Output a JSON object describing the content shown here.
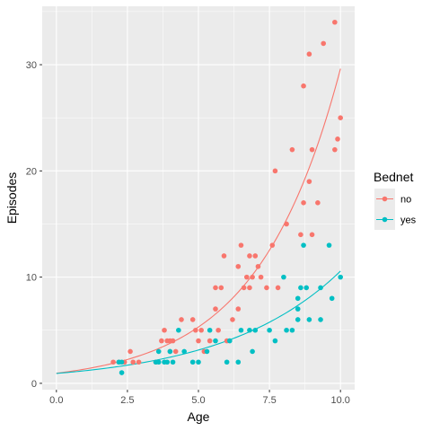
{
  "chart_data": {
    "type": "scatter",
    "xlabel": "Age",
    "ylabel": "Episodes",
    "xlim": [
      -0.5,
      10.5
    ],
    "ylim": [
      -0.6,
      35.5
    ],
    "x_ticks": [
      0,
      2.5,
      5,
      7.5,
      10
    ],
    "x_tick_labels": [
      "0.0",
      "2.5",
      "5.0",
      "7.5",
      "10.0"
    ],
    "y_ticks": [
      0,
      10,
      20,
      30
    ],
    "y_tick_labels": [
      "0",
      "10",
      "20",
      "30"
    ],
    "grid": true,
    "legend": {
      "title": "Bednet",
      "position": "right"
    },
    "series": [
      {
        "name": "no",
        "color": "#F8766D",
        "points": [
          [
            2.0,
            2
          ],
          [
            2.2,
            2
          ],
          [
            2.4,
            2
          ],
          [
            2.6,
            3
          ],
          [
            2.7,
            2
          ],
          [
            2.9,
            2
          ],
          [
            3.5,
            2
          ],
          [
            3.7,
            4
          ],
          [
            3.8,
            5
          ],
          [
            3.9,
            4
          ],
          [
            4.0,
            3
          ],
          [
            4.0,
            4
          ],
          [
            4.1,
            4
          ],
          [
            4.2,
            3
          ],
          [
            4.4,
            6
          ],
          [
            4.8,
            6
          ],
          [
            4.9,
            5
          ],
          [
            5.0,
            4
          ],
          [
            5.1,
            5
          ],
          [
            5.2,
            3
          ],
          [
            5.4,
            4
          ],
          [
            5.6,
            7
          ],
          [
            5.6,
            9
          ],
          [
            5.7,
            5
          ],
          [
            5.8,
            9
          ],
          [
            5.9,
            12
          ],
          [
            6.0,
            4
          ],
          [
            6.2,
            6
          ],
          [
            6.4,
            7
          ],
          [
            6.4,
            11
          ],
          [
            6.5,
            13
          ],
          [
            6.6,
            9
          ],
          [
            6.7,
            10
          ],
          [
            6.8,
            9
          ],
          [
            6.8,
            12
          ],
          [
            6.9,
            10
          ],
          [
            7.0,
            12
          ],
          [
            7.1,
            11
          ],
          [
            7.2,
            10
          ],
          [
            7.4,
            9
          ],
          [
            7.6,
            13
          ],
          [
            7.7,
            20
          ],
          [
            7.8,
            9
          ],
          [
            8.1,
            15
          ],
          [
            8.3,
            22
          ],
          [
            8.6,
            14
          ],
          [
            8.7,
            17
          ],
          [
            8.7,
            28
          ],
          [
            8.9,
            19
          ],
          [
            8.9,
            31
          ],
          [
            9.0,
            14
          ],
          [
            9.0,
            22
          ],
          [
            9.2,
            17
          ],
          [
            9.4,
            32
          ],
          [
            9.8,
            34
          ],
          [
            9.8,
            22
          ],
          [
            9.9,
            23
          ],
          [
            10.0,
            25
          ]
        ],
        "fit": {
          "form": "exponential",
          "a": 0.95,
          "b": 0.344
        }
      },
      {
        "name": "yes",
        "color": "#00BFC4",
        "points": [
          [
            2.2,
            2
          ],
          [
            2.3,
            2
          ],
          [
            2.3,
            1
          ],
          [
            3.5,
            2
          ],
          [
            3.6,
            2
          ],
          [
            3.6,
            3
          ],
          [
            3.8,
            2
          ],
          [
            3.9,
            2
          ],
          [
            4.0,
            3
          ],
          [
            4.1,
            2
          ],
          [
            4.3,
            5
          ],
          [
            4.5,
            3
          ],
          [
            4.8,
            2
          ],
          [
            5.0,
            2
          ],
          [
            5.3,
            3
          ],
          [
            5.4,
            5
          ],
          [
            5.6,
            4
          ],
          [
            6.0,
            2
          ],
          [
            6.1,
            4
          ],
          [
            6.4,
            2
          ],
          [
            6.5,
            5
          ],
          [
            6.8,
            5
          ],
          [
            6.9,
            3
          ],
          [
            7.0,
            5
          ],
          [
            7.5,
            5
          ],
          [
            7.7,
            4
          ],
          [
            8.0,
            10
          ],
          [
            8.1,
            5
          ],
          [
            8.3,
            5
          ],
          [
            8.5,
            6
          ],
          [
            8.5,
            7
          ],
          [
            8.5,
            8
          ],
          [
            8.6,
            9
          ],
          [
            8.7,
            13
          ],
          [
            8.8,
            9
          ],
          [
            8.9,
            6
          ],
          [
            9.3,
            6
          ],
          [
            9.3,
            9
          ],
          [
            9.6,
            13
          ],
          [
            9.7,
            8
          ],
          [
            10.0,
            10
          ]
        ],
        "fit": {
          "form": "exponential",
          "a": 0.93,
          "b": 0.243
        }
      }
    ]
  }
}
